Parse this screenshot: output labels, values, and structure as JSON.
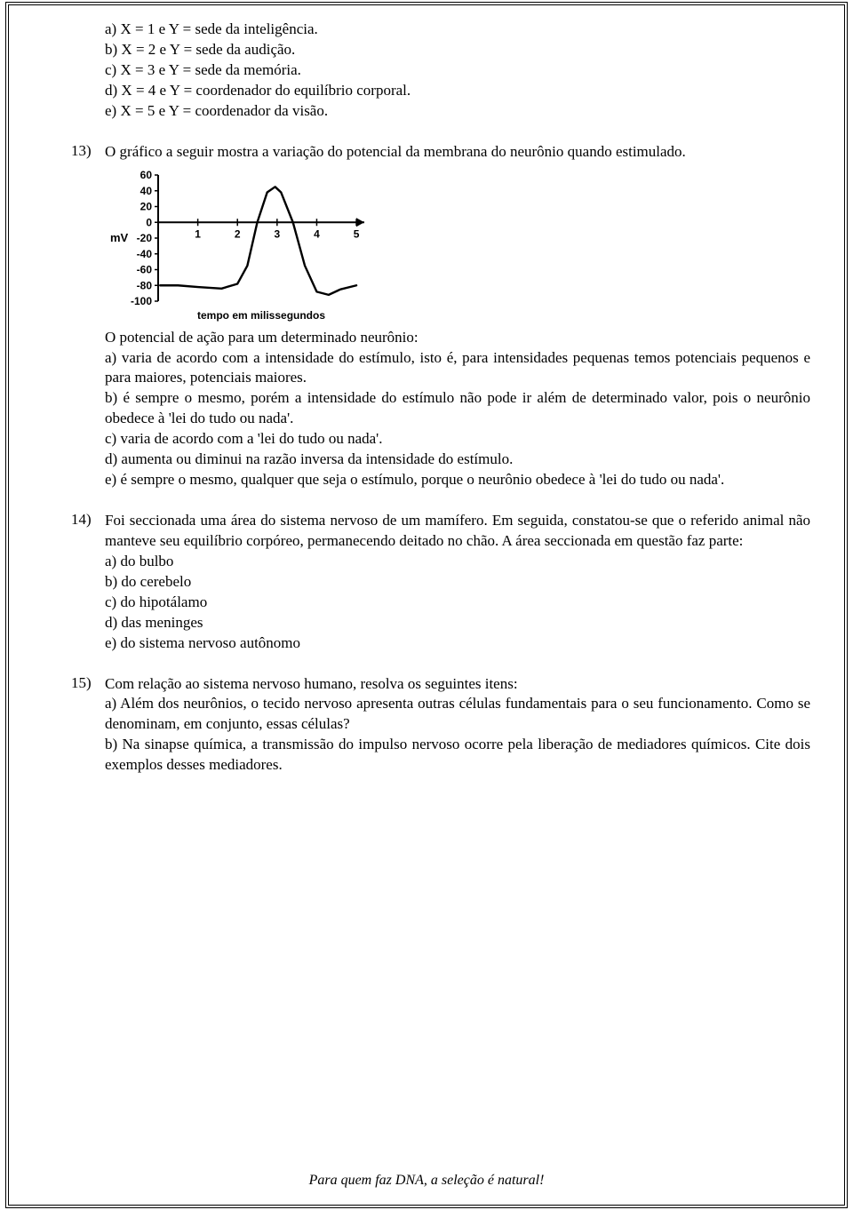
{
  "q_block_a": {
    "a": "a) X = 1 e Y = sede da inteligência.",
    "b": "b) X = 2 e Y = sede da audição.",
    "c": "c) X = 3 e Y = sede da memória.",
    "d": "d) X = 4 e Y = coordenador do equilíbrio corporal.",
    "e": "e) X = 5 e Y = coordenador da visão."
  },
  "q13": {
    "num": "13)",
    "prompt": "O gráfico a seguir mostra a variação do potencial da membrana do neurônio quando estimulado.",
    "chart": {
      "type": "line",
      "y_label": "mV",
      "y_ticks": [
        "60",
        "40",
        "20",
        "0",
        "-20",
        "-40",
        "-60",
        "-80",
        "-100"
      ],
      "x_ticks": [
        "1",
        "2",
        "3",
        "4",
        "5"
      ],
      "x_caption": "tempo em milissegundos",
      "axis_color": "#000000",
      "line_color": "#000000",
      "background_color": "#ffffff",
      "label_fontsize": 12,
      "caption_fontsize": 12,
      "caption_bold": true,
      "line_width": 2.4,
      "xlim": [
        0,
        5.2
      ],
      "ylim": [
        -100,
        60
      ],
      "series": [
        {
          "x": 0.05,
          "y": -80
        },
        {
          "x": 0.5,
          "y": -80
        },
        {
          "x": 1.0,
          "y": -82
        },
        {
          "x": 1.6,
          "y": -84
        },
        {
          "x": 2.0,
          "y": -78
        },
        {
          "x": 2.25,
          "y": -55
        },
        {
          "x": 2.5,
          "y": 0
        },
        {
          "x": 2.75,
          "y": 38
        },
        {
          "x": 2.95,
          "y": 45
        },
        {
          "x": 3.1,
          "y": 38
        },
        {
          "x": 3.4,
          "y": 0
        },
        {
          "x": 3.7,
          "y": -55
        },
        {
          "x": 4.0,
          "y": -88
        },
        {
          "x": 4.3,
          "y": -92
        },
        {
          "x": 4.6,
          "y": -85
        },
        {
          "x": 5.0,
          "y": -80
        }
      ]
    },
    "after_chart_intro": "O potencial de ação para um determinado neurônio:",
    "a": "a) varia de acordo com a intensidade do estímulo, isto é, para intensidades pequenas temos potenciais pequenos e para maiores, potenciais maiores.",
    "b": "b) é sempre o mesmo, porém a intensidade do estímulo não pode ir além de determinado valor, pois o neurônio obedece à 'lei do tudo ou nada'.",
    "c": "c) varia de acordo com a 'lei do tudo ou nada'.",
    "d": "d) aumenta ou diminui na razão inversa da intensidade do estímulo.",
    "e": "e) é sempre o mesmo, qualquer que seja o estímulo, porque o neurônio obedece à 'lei do tudo ou nada'."
  },
  "q14": {
    "num": "14)",
    "prompt": "Foi seccionada uma área do sistema nervoso de um mamífero. Em seguida, constatou-se que o referido animal não manteve seu equilíbrio corpóreo, permanecendo deitado no chão. A área seccionada em questão faz parte:",
    "a": "a) do bulbo",
    "b": "b) do cerebelo",
    "c": "c) do hipotálamo",
    "d": "d) das meninges",
    "e": "e) do sistema nervoso autônomo"
  },
  "q15": {
    "num": "15)",
    "prompt": "Com relação ao sistema nervoso humano, resolva os seguintes itens:",
    "a": "a) Além dos neurônios, o tecido nervoso apresenta outras células fundamentais para o seu funcionamento. Como se denominam, em conjunto, essas células?",
    "b": "b) Na sinapse química, a transmissão do impulso nervoso ocorre pela liberação de mediadores químicos. Cite dois exemplos desses mediadores."
  },
  "footer": "Para quem faz DNA, a seleção é natural!"
}
